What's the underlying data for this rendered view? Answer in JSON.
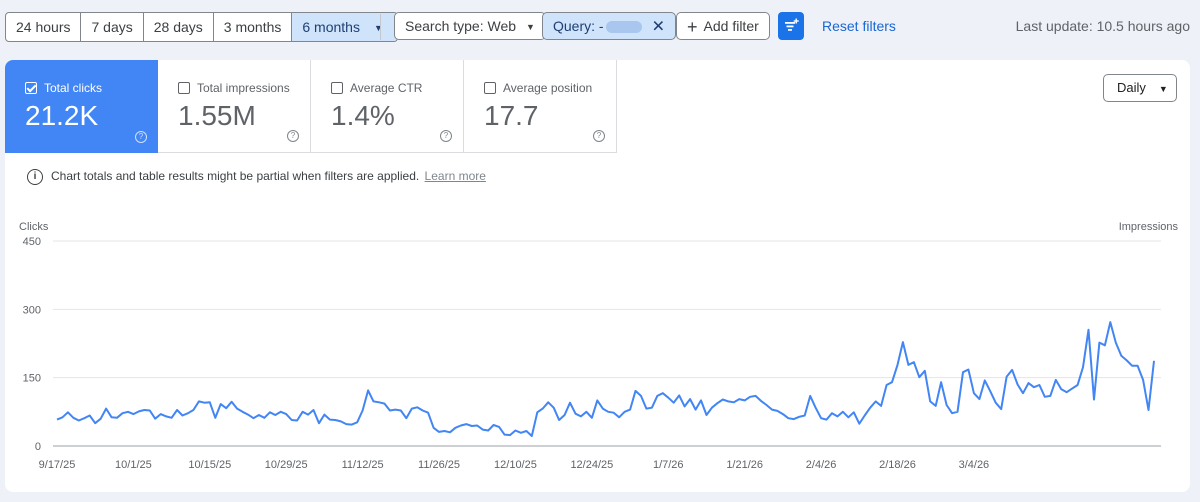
{
  "date_range": {
    "options": [
      "24 hours",
      "7 days",
      "28 days",
      "3 months",
      "6 months"
    ],
    "selected": "6 months"
  },
  "filters": {
    "search_type": "Search type: Web",
    "query_prefix": "Query: -",
    "add_filter": "Add filter",
    "reset": "Reset filters"
  },
  "last_update": "Last update: 10.5 hours ago",
  "metrics": [
    {
      "label": "Total clicks",
      "value": "21.2K",
      "checked": true
    },
    {
      "label": "Total impressions",
      "value": "1.55M",
      "checked": false
    },
    {
      "label": "Average CTR",
      "value": "1.4%",
      "checked": false
    },
    {
      "label": "Average position",
      "value": "17.7",
      "checked": false
    }
  ],
  "granularity": "Daily",
  "notice": {
    "text": "Chart totals and table results might be partial when filters are applied.",
    "link": "Learn more"
  },
  "colors": {
    "accent": "#1a73e8",
    "clicks_card": "#4285f4",
    "line": "#4285f4"
  },
  "chart_data": {
    "type": "line",
    "y_left_label": "Clicks",
    "y_right_label": "Impressions",
    "yticks": [
      0,
      150,
      300,
      450
    ],
    "ylim": [
      0,
      450
    ],
    "x_tick_labels": [
      "9/17/25",
      "10/1/25",
      "10/15/25",
      "10/29/25",
      "11/12/25",
      "11/26/25",
      "12/10/25",
      "12/24/25",
      "1/7/26",
      "1/21/26",
      "2/4/26",
      "2/18/26",
      "3/4/26"
    ],
    "start_date": "9/17/25",
    "series": [
      {
        "name": "Clicks",
        "values": [
          58,
          63,
          74,
          62,
          56,
          61,
          67,
          50,
          60,
          82,
          63,
          62,
          72,
          75,
          70,
          76,
          79,
          78,
          60,
          70,
          65,
          62,
          79,
          67,
          72,
          79,
          98,
          95,
          96,
          62,
          92,
          83,
          97,
          82,
          75,
          69,
          61,
          68,
          62,
          74,
          68,
          75,
          70,
          57,
          56,
          75,
          69,
          79,
          50,
          69,
          58,
          57,
          54,
          48,
          47,
          52,
          78,
          122,
          98,
          96,
          93,
          78,
          80,
          78,
          61,
          82,
          85,
          78,
          73,
          40,
          31,
          33,
          30,
          40,
          45,
          48,
          44,
          45,
          36,
          34,
          46,
          42,
          25,
          24,
          34,
          29,
          33,
          22,
          74,
          82,
          96,
          84,
          57,
          68,
          95,
          71,
          65,
          75,
          62,
          100,
          82,
          75,
          73,
          63,
          75,
          80,
          121,
          110,
          82,
          84,
          110,
          116,
          106,
          95,
          111,
          87,
          103,
          80,
          100,
          68,
          84,
          94,
          102,
          98,
          96,
          103,
          100,
          108,
          110,
          99,
          90,
          80,
          77,
          70,
          61,
          59,
          64,
          67,
          110,
          84,
          61,
          58,
          72,
          65,
          75,
          63,
          74,
          49,
          67,
          84,
          98,
          88,
          134,
          140,
          178,
          228,
          178,
          184,
          151,
          165,
          98,
          88,
          140,
          90,
          72,
          75,
          162,
          168,
          116,
          103,
          144,
          120,
          95,
          81,
          152,
          167,
          135,
          116,
          138,
          129,
          134,
          108,
          110,
          145,
          125,
          118,
          126,
          134,
          173,
          255,
          102,
          227,
          221,
          272,
          227,
          198,
          188,
          176,
          176,
          145,
          79,
          187
        ]
      }
    ]
  }
}
